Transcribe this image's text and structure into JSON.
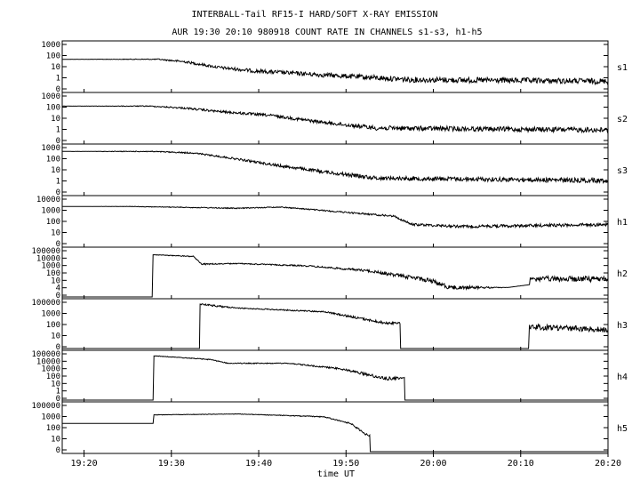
{
  "chart_data": {
    "type": "line",
    "title": "INTERBALL-Tail RF15-I HARD/SOFT X-RAY EMISSION",
    "subtitle": "AUR 19:30 20:10 980918  COUNT RATE IN CHANNELS s1-s3, h1-h5",
    "xlabel": "time UT",
    "x_ticks": [
      "19:20",
      "19:30",
      "19:40",
      "19:50",
      "20:00",
      "20:10",
      "20:20"
    ],
    "x_range_minutes": [
      1160,
      1222.5
    ],
    "y_scale": "log",
    "grid": false,
    "panels": [
      {
        "name": "s1",
        "y_ticks": [
          "1000",
          "100",
          "10",
          "1",
          "0"
        ],
        "series": [
          {
            "t": 1160,
            "v": 100,
            "noise": 0
          },
          {
            "t": 1171,
            "v": 100,
            "noise": 0.02
          },
          {
            "t": 1174,
            "v": 70,
            "noise": 0.05
          },
          {
            "t": 1178,
            "v": 30,
            "noise": 0.06
          },
          {
            "t": 1182,
            "v": 18,
            "noise": 0.08
          },
          {
            "t": 1190,
            "v": 10,
            "noise": 0.1
          },
          {
            "t": 1200,
            "v": 5,
            "noise": 0.12
          },
          {
            "t": 1222.5,
            "v": 4,
            "noise": 0.12
          }
        ]
      },
      {
        "name": "s2",
        "y_ticks": [
          "1000",
          "100",
          "10",
          "1",
          "0"
        ],
        "series": [
          {
            "t": 1160,
            "v": 200,
            "noise": 0
          },
          {
            "t": 1170,
            "v": 200,
            "noise": 0.02
          },
          {
            "t": 1174,
            "v": 150,
            "noise": 0.04
          },
          {
            "t": 1178,
            "v": 90,
            "noise": 0.05
          },
          {
            "t": 1184,
            "v": 50,
            "noise": 0.06
          },
          {
            "t": 1190,
            "v": 18,
            "noise": 0.07
          },
          {
            "t": 1196,
            "v": 8,
            "noise": 0.1
          },
          {
            "t": 1222.5,
            "v": 6,
            "noise": 0.11
          }
        ]
      },
      {
        "name": "s3",
        "y_ticks": [
          "1000",
          "100",
          "10",
          "1",
          "0"
        ],
        "series": [
          {
            "t": 1160,
            "v": 500,
            "noise": 0
          },
          {
            "t": 1170,
            "v": 500,
            "noise": 0.02
          },
          {
            "t": 1175,
            "v": 400,
            "noise": 0.03
          },
          {
            "t": 1179,
            "v": 200,
            "noise": 0.04
          },
          {
            "t": 1185,
            "v": 60,
            "noise": 0.06
          },
          {
            "t": 1190,
            "v": 25,
            "noise": 0.07
          },
          {
            "t": 1196,
            "v": 10,
            "noise": 0.09
          },
          {
            "t": 1222.5,
            "v": 7,
            "noise": 0.1
          }
        ]
      },
      {
        "name": "h1",
        "y_ticks": [
          "10000",
          "1000",
          "100",
          "10",
          "0"
        ],
        "series": [
          {
            "t": 1160,
            "v": 2000,
            "noise": 0
          },
          {
            "t": 1168,
            "v": 2000,
            "noise": 0.01
          },
          {
            "t": 1176,
            "v": 1600,
            "noise": 0.02
          },
          {
            "t": 1180,
            "v": 1400,
            "noise": 0.02
          },
          {
            "t": 1185,
            "v": 1800,
            "noise": 0.02
          },
          {
            "t": 1190,
            "v": 900,
            "noise": 0.03
          },
          {
            "t": 1198,
            "v": 300,
            "noise": 0.04
          },
          {
            "t": 1200,
            "v": 60,
            "noise": 0.05
          },
          {
            "t": 1206,
            "v": 40,
            "noise": 0.06
          },
          {
            "t": 1222.5,
            "v": 60,
            "noise": 0.07
          }
        ]
      },
      {
        "name": "h2",
        "y_ticks": [
          "100000",
          "10000",
          "1000",
          "100",
          "10",
          "4",
          "0"
        ],
        "series": [
          {
            "t": 1160,
            "v": 0,
            "noise": 0
          },
          {
            "t": 1170.3,
            "v": 0,
            "noise": 0
          },
          {
            "t": 1170.4,
            "v": 30000,
            "noise": 0.01
          },
          {
            "t": 1175,
            "v": 20000,
            "noise": 0.02
          },
          {
            "t": 1176,
            "v": 3000,
            "noise": 0.03
          },
          {
            "t": 1180,
            "v": 3500,
            "noise": 0.02
          },
          {
            "t": 1188,
            "v": 2000,
            "noise": 0.03
          },
          {
            "t": 1195,
            "v": 600,
            "noise": 0.05
          },
          {
            "t": 1202,
            "v": 60,
            "noise": 0.1
          },
          {
            "t": 1204.5,
            "v": 10,
            "noise": 0.1
          },
          {
            "t": 1211,
            "v": 10,
            "noise": 0
          },
          {
            "t": 1213.5,
            "v": 20,
            "noise": 0
          },
          {
            "t": 1213.6,
            "v": 80,
            "noise": 0.12
          },
          {
            "t": 1222.5,
            "v": 80,
            "noise": 0.12
          }
        ]
      },
      {
        "name": "h3",
        "y_ticks": [
          "100000",
          "1000",
          "100",
          "10",
          "0"
        ],
        "series": [
          {
            "t": 1160,
            "v": 0,
            "noise": 0
          },
          {
            "t": 1175.5,
            "v": 0,
            "noise": 0
          },
          {
            "t": 1176,
            "v": 50000,
            "noise": 0.03
          },
          {
            "t": 1178,
            "v": 30000,
            "noise": 0.04
          },
          {
            "t": 1180,
            "v": 20000,
            "noise": 0.02
          },
          {
            "t": 1190,
            "v": 8000,
            "noise": 0.03
          },
          {
            "t": 1197,
            "v": 500,
            "noise": 0.06
          },
          {
            "t": 1200.5,
            "v": 0,
            "noise": 0
          },
          {
            "t": 1213.4,
            "v": 0,
            "noise": 0
          },
          {
            "t": 1213.5,
            "v": 200,
            "noise": 0.12
          },
          {
            "t": 1222.5,
            "v": 100,
            "noise": 0.12
          }
        ]
      },
      {
        "name": "h4",
        "y_ticks": [
          "100000",
          "10000",
          "1000",
          "100",
          "10",
          "1",
          "0"
        ],
        "series": [
          {
            "t": 1160,
            "v": 0,
            "noise": 0
          },
          {
            "t": 1170.4,
            "v": 0,
            "noise": 0
          },
          {
            "t": 1170.5,
            "v": 50000,
            "noise": 0.01
          },
          {
            "t": 1177,
            "v": 20000,
            "noise": 0.02
          },
          {
            "t": 1179,
            "v": 8000,
            "noise": 0.02
          },
          {
            "t": 1186,
            "v": 8000,
            "noise": 0.02
          },
          {
            "t": 1192,
            "v": 2000,
            "noise": 0.04
          },
          {
            "t": 1197,
            "v": 200,
            "noise": 0.08
          },
          {
            "t": 1201.5,
            "v": 0,
            "noise": 0
          },
          {
            "t": 1222.5,
            "v": 0,
            "noise": 0
          }
        ]
      },
      {
        "name": "h5",
        "y_ticks": [
          "100000",
          "1000",
          "100",
          "10",
          "0"
        ],
        "series": [
          {
            "t": 1160,
            "v": 1000,
            "noise": 0
          },
          {
            "t": 1170.4,
            "v": 1000,
            "noise": 0
          },
          {
            "t": 1170.5,
            "v": 8000,
            "noise": 0.01
          },
          {
            "t": 1180,
            "v": 10000,
            "noise": 0.01
          },
          {
            "t": 1190,
            "v": 5000,
            "noise": 0.02
          },
          {
            "t": 1193,
            "v": 1000,
            "noise": 0.03
          },
          {
            "t": 1195,
            "v": 50,
            "noise": 0.05
          },
          {
            "t": 1195.5,
            "v": 0,
            "noise": 0
          },
          {
            "t": 1222.5,
            "v": 0,
            "noise": 0
          }
        ]
      }
    ]
  }
}
